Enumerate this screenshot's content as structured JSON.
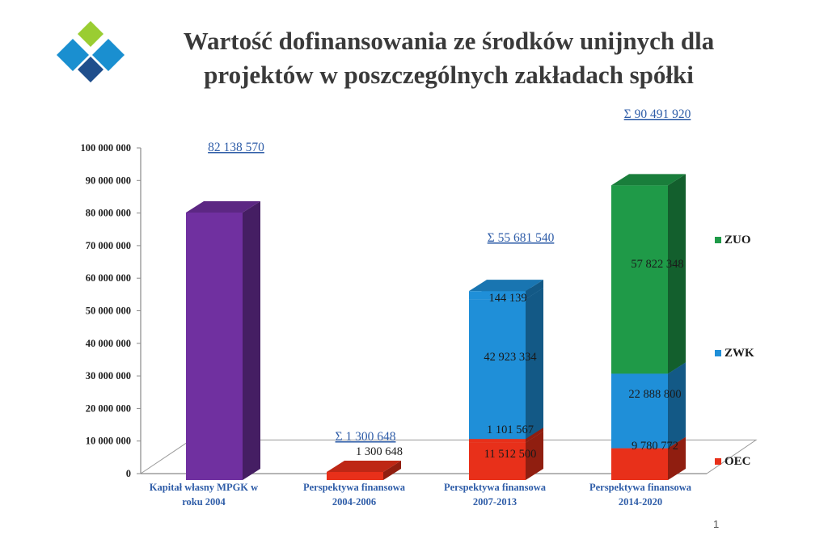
{
  "slide": {
    "title_line1": "Wartość dofinansowania ze środków unijnych dla",
    "title_line2": "projektów w poszczególnych zakładach spółki",
    "page_number": "1"
  },
  "colors": {
    "purple": "#7030a0",
    "OEC": "#e8301a",
    "ZWK": "#1f8fd8",
    "ZUO": "#1f9a48",
    "label_blue": "#2f5da8",
    "logo_lime": "#9acd32",
    "logo_blue": "#1a8fd0",
    "logo_navy": "#1f4e8c"
  },
  "chart_data": {
    "type": "bar",
    "stacked": true,
    "three_d": true,
    "title": "Wartość dofinansowania ze środków unijnych dla projektów w poszczególnych zakładach spółki",
    "ylim": [
      0,
      100000000
    ],
    "yticks": [
      0,
      10000000,
      20000000,
      30000000,
      40000000,
      50000000,
      60000000,
      70000000,
      80000000,
      90000000,
      100000000
    ],
    "ytick_labels": [
      "0",
      "10 000 000",
      "20 000 000",
      "30 000 000",
      "40 000 000",
      "50 000 000",
      "60 000 000",
      "70 000 000",
      "80 000 000",
      "90 000 000",
      "100 000 000"
    ],
    "categories": [
      "Kapitał własny MPGK w roku 2004",
      "Perspektywa finansowa 2004-2006",
      "Perspektywa finansowa 2007-2013",
      "Perspektywa finansowa 2014-2020"
    ],
    "category_lines": [
      [
        "Kapitał własny MPGK w",
        "roku 2004"
      ],
      [
        "Perspektywa finansowa",
        "2004-2006"
      ],
      [
        "Perspektywa finansowa",
        "2007-2013"
      ],
      [
        "Perspektywa finansowa",
        "2014-2020"
      ]
    ],
    "bars": [
      {
        "category": 0,
        "segments": [
          {
            "series": "Kapitał",
            "value": 82138570,
            "label": ""
          }
        ],
        "total_label": "82 138 570"
      },
      {
        "category": 1,
        "segments": [
          {
            "series": "OEC",
            "value": 1300648,
            "label": "1 300 648"
          }
        ],
        "total_label": "Σ  1 300 648"
      },
      {
        "category": 2,
        "segments": [
          {
            "series": "OEC",
            "value": 11512500,
            "label": "11 512 500"
          },
          {
            "series": "OEC",
            "value": 1101567,
            "label": "1 101 567"
          },
          {
            "series": "ZWK",
            "value": 42923334,
            "label": "42 923 334"
          },
          {
            "series": "ZWK",
            "value": 144139,
            "label": "144 139"
          }
        ],
        "total_label": "Σ  55 681 540"
      },
      {
        "category": 3,
        "segments": [
          {
            "series": "OEC",
            "value": 9780772,
            "label": "9 780 772"
          },
          {
            "series": "ZWK",
            "value": 22888800,
            "label": "22 888 800"
          },
          {
            "series": "ZUO",
            "value": 57822348,
            "label": "57 822 348"
          }
        ],
        "total_label": "Σ  90 491 920"
      }
    ],
    "legend": [
      {
        "name": "ZUO",
        "color": "#1f9a48"
      },
      {
        "name": "ZWK",
        "color": "#1f8fd8"
      },
      {
        "name": "OEC",
        "color": "#e8301a"
      }
    ],
    "legend_position": "right",
    "grid": false
  }
}
